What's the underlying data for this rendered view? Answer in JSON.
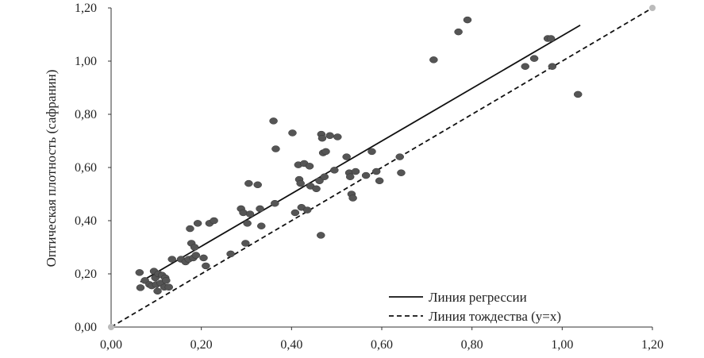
{
  "chart_data": {
    "type": "scatter",
    "title": "",
    "xlabel": "",
    "ylabel": "Оптическая плотность (сафранин)",
    "xlim": [
      0,
      1.2
    ],
    "ylim": [
      0,
      1.2
    ],
    "x_ticks": [
      "0,00",
      "0,20",
      "0,40",
      "0,60",
      "0,80",
      "1,00",
      "1,20"
    ],
    "y_ticks": [
      "0,00",
      "0,20",
      "0,40",
      "0,60",
      "0,80",
      "1,00",
      "1,20"
    ],
    "grid": false,
    "legend_position": "bottom-right",
    "series": [
      {
        "kind": "points",
        "color": "#555555",
        "points": [
          [
            0.063,
            0.205
          ],
          [
            0.065,
            0.148
          ],
          [
            0.075,
            0.175
          ],
          [
            0.085,
            0.16
          ],
          [
            0.09,
            0.155
          ],
          [
            0.095,
            0.21
          ],
          [
            0.098,
            0.185
          ],
          [
            0.1,
            0.16
          ],
          [
            0.103,
            0.135
          ],
          [
            0.105,
            0.2
          ],
          [
            0.11,
            0.165
          ],
          [
            0.113,
            0.195
          ],
          [
            0.118,
            0.15
          ],
          [
            0.12,
            0.185
          ],
          [
            0.122,
            0.175
          ],
          [
            0.128,
            0.15
          ],
          [
            0.135,
            0.255
          ],
          [
            0.155,
            0.255
          ],
          [
            0.165,
            0.245
          ],
          [
            0.172,
            0.255
          ],
          [
            0.175,
            0.37
          ],
          [
            0.178,
            0.315
          ],
          [
            0.182,
            0.26
          ],
          [
            0.185,
            0.3
          ],
          [
            0.188,
            0.27
          ],
          [
            0.192,
            0.39
          ],
          [
            0.205,
            0.26
          ],
          [
            0.21,
            0.23
          ],
          [
            0.218,
            0.39
          ],
          [
            0.228,
            0.4
          ],
          [
            0.265,
            0.275
          ],
          [
            0.288,
            0.445
          ],
          [
            0.293,
            0.43
          ],
          [
            0.298,
            0.315
          ],
          [
            0.302,
            0.39
          ],
          [
            0.305,
            0.54
          ],
          [
            0.308,
            0.425
          ],
          [
            0.325,
            0.535
          ],
          [
            0.33,
            0.445
          ],
          [
            0.333,
            0.38
          ],
          [
            0.36,
            0.775
          ],
          [
            0.363,
            0.465
          ],
          [
            0.365,
            0.67
          ],
          [
            0.402,
            0.73
          ],
          [
            0.408,
            0.43
          ],
          [
            0.415,
            0.61
          ],
          [
            0.417,
            0.555
          ],
          [
            0.42,
            0.54
          ],
          [
            0.422,
            0.45
          ],
          [
            0.428,
            0.615
          ],
          [
            0.435,
            0.44
          ],
          [
            0.44,
            0.605
          ],
          [
            0.442,
            0.53
          ],
          [
            0.455,
            0.52
          ],
          [
            0.462,
            0.55
          ],
          [
            0.465,
            0.345
          ],
          [
            0.466,
            0.725
          ],
          [
            0.468,
            0.71
          ],
          [
            0.47,
            0.655
          ],
          [
            0.473,
            0.565
          ],
          [
            0.476,
            0.66
          ],
          [
            0.485,
            0.72
          ],
          [
            0.495,
            0.59
          ],
          [
            0.502,
            0.715
          ],
          [
            0.522,
            0.64
          ],
          [
            0.528,
            0.58
          ],
          [
            0.53,
            0.565
          ],
          [
            0.533,
            0.5
          ],
          [
            0.536,
            0.485
          ],
          [
            0.542,
            0.585
          ],
          [
            0.565,
            0.57
          ],
          [
            0.578,
            0.66
          ],
          [
            0.588,
            0.585
          ],
          [
            0.595,
            0.55
          ],
          [
            0.64,
            0.64
          ],
          [
            0.643,
            0.58
          ],
          [
            0.715,
            1.005
          ],
          [
            0.77,
            1.11
          ],
          [
            0.79,
            1.155
          ],
          [
            0.918,
            0.98
          ],
          [
            0.938,
            1.01
          ],
          [
            0.968,
            1.085
          ],
          [
            0.975,
            1.085
          ],
          [
            0.978,
            0.98
          ],
          [
            1.035,
            0.875
          ]
        ]
      },
      {
        "name": "Линия регрессии",
        "kind": "line",
        "style": "solid",
        "color": "#111111",
        "points": [
          [
            0.065,
            0.17
          ],
          [
            1.04,
            1.135
          ]
        ]
      },
      {
        "name": "Линия тождества (y=x)",
        "kind": "line",
        "style": "dashed",
        "color": "#111111",
        "points": [
          [
            0,
            0
          ],
          [
            1.2,
            1.2
          ]
        ]
      }
    ]
  }
}
